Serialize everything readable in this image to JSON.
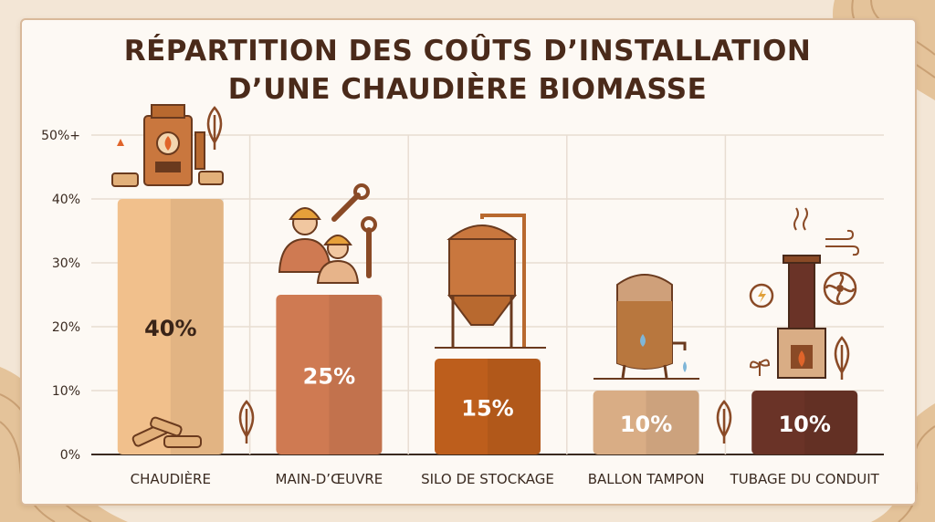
{
  "title_lines": [
    "RÉPARTITION DES COÛTS D’INSTALLATION",
    "D’UNE CHAUDIÈRE BIOMASSE"
  ],
  "colors": {
    "background": "#f3e6d6",
    "card": "#fdf9f4",
    "title": "#4a2a1a",
    "grid": "#e8ddd2",
    "axis": "#3a2a20",
    "bar_chaudiere": "#f1c08c",
    "bar_main_oeuvre": "#cf7a52",
    "bar_silo": "#bd5e1c",
    "bar_ballon": "#d9ad85",
    "bar_tubage": "#6a3327",
    "icon_brown": "#8a4a26"
  },
  "chart_data": {
    "type": "bar",
    "title": "RÉPARTITION DES COÛTS D’INSTALLATION D’UNE CHAUDIÈRE BIOMASSE",
    "categories": [
      "CHAUDIÈRE",
      "MAIN-D’ŒUVRE",
      "SILO DE STOCKAGE",
      "BALLON TAMPON",
      "TUBAGE DU CONDUIT"
    ],
    "values": [
      40,
      25,
      15,
      10,
      10
    ],
    "value_labels": [
      "40%",
      "25%",
      "15%",
      "10%",
      "10%"
    ],
    "bar_icons": [
      "boiler-icon",
      "workers-icon",
      "silo-icon",
      "buffer-tank-icon",
      "chimney-stove-icon"
    ],
    "ylim": [
      0,
      50
    ],
    "yticks": [
      0,
      10,
      20,
      30,
      40,
      50
    ],
    "ytick_labels": [
      "0%",
      "10%",
      "20%",
      "30%",
      "40%",
      "50%+"
    ],
    "grid": true,
    "xlabel": "",
    "ylabel": ""
  }
}
